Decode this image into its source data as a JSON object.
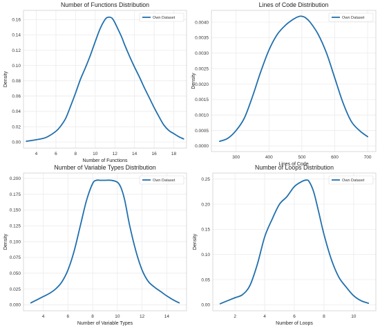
{
  "chart_data": [
    {
      "type": "line",
      "title": "Number of Functions Distribution",
      "xlabel": "Number of Functions",
      "ylabel": "Density",
      "xlim": [
        2.7,
        19.3
      ],
      "ylim": [
        -0.008,
        0.172
      ],
      "xticks": [
        4,
        6,
        8,
        10,
        12,
        14,
        16,
        18
      ],
      "yticks": [
        0.0,
        0.02,
        0.04,
        0.06,
        0.08,
        0.1,
        0.12,
        0.14,
        0.16
      ],
      "ytick_labels": [
        "0.00",
        "0.02",
        "0.04",
        "0.06",
        "0.08",
        "0.10",
        "0.12",
        "0.14",
        "0.16"
      ],
      "grid": true,
      "legend_position": "top-right",
      "series": [
        {
          "name": "Own Dataset",
          "color": "#1f6fae",
          "x": [
            3.0,
            4.0,
            5.0,
            6.0,
            6.5,
            7.0,
            7.5,
            8.0,
            8.5,
            9.0,
            9.5,
            10.0,
            10.5,
            11.0,
            11.3,
            11.7,
            12.0,
            12.3,
            12.7,
            13.0,
            13.5,
            14.0,
            14.5,
            15.0,
            15.5,
            16.0,
            16.5,
            17.0,
            17.5,
            18.0,
            18.5,
            19.0
          ],
          "y": [
            0.001,
            0.003,
            0.006,
            0.014,
            0.021,
            0.031,
            0.047,
            0.064,
            0.082,
            0.097,
            0.113,
            0.131,
            0.148,
            0.16,
            0.163,
            0.162,
            0.156,
            0.148,
            0.137,
            0.127,
            0.112,
            0.098,
            0.085,
            0.071,
            0.058,
            0.045,
            0.033,
            0.022,
            0.015,
            0.011,
            0.007,
            0.004
          ]
        }
      ]
    },
    {
      "type": "line",
      "title": "Lines of Code Distribution",
      "xlabel": "Lines of Code",
      "ylabel": "Density",
      "xlim": [
        225,
        725
      ],
      "ylim": [
        -0.00018,
        0.00438
      ],
      "xticks": [
        300,
        400,
        500,
        600,
        700
      ],
      "yticks": [
        0,
        0.0005,
        0.001,
        0.0015,
        0.002,
        0.0025,
        0.003,
        0.0035,
        0.004
      ],
      "ytick_labels": [
        "0.0000",
        "0.0005",
        "0.0010",
        "0.0015",
        "0.0020",
        "0.0025",
        "0.0030",
        "0.0035",
        "0.0040"
      ],
      "grid": true,
      "legend_position": "top-right",
      "series": [
        {
          "name": "Own Dataset",
          "color": "#1f6fae",
          "x": [
            250,
            275,
            300,
            325,
            350,
            375,
            400,
            425,
            450,
            475,
            490,
            500,
            510,
            525,
            550,
            575,
            600,
            625,
            650,
            675,
            700
          ],
          "y": [
            0.00015,
            0.00025,
            0.0005,
            0.0009,
            0.0016,
            0.0024,
            0.0031,
            0.0036,
            0.0039,
            0.0041,
            0.00418,
            0.00419,
            0.00415,
            0.004,
            0.0036,
            0.003,
            0.0022,
            0.0014,
            0.0008,
            0.0005,
            0.0003
          ]
        }
      ]
    },
    {
      "type": "line",
      "title": "Number of Variable Types Distribution",
      "xlabel": "Number of Variable Types",
      "ylabel": "Density",
      "xlim": [
        2.4,
        15.6
      ],
      "ylim": [
        -0.0095,
        0.2085
      ],
      "xticks": [
        4,
        6,
        8,
        10,
        12,
        14
      ],
      "yticks": [
        0.0,
        0.025,
        0.05,
        0.075,
        0.1,
        0.125,
        0.15,
        0.175,
        0.2
      ],
      "ytick_labels": [
        "0.000",
        "0.025",
        "0.050",
        "0.075",
        "0.100",
        "0.125",
        "0.150",
        "0.175",
        "0.200"
      ],
      "grid": true,
      "legend_position": "top-right",
      "series": [
        {
          "name": "Own Dataset",
          "color": "#1f6fae",
          "x": [
            3.0,
            3.5,
            4.0,
            4.5,
            5.0,
            5.5,
            6.0,
            6.5,
            7.0,
            7.5,
            8.0,
            8.3,
            8.6,
            9.0,
            9.5,
            10.0,
            10.3,
            10.6,
            11.0,
            11.5,
            12.0,
            12.5,
            13.0,
            13.5,
            14.0,
            14.5,
            15.0
          ],
          "y": [
            0.003,
            0.008,
            0.013,
            0.018,
            0.025,
            0.036,
            0.055,
            0.085,
            0.125,
            0.165,
            0.192,
            0.197,
            0.197,
            0.197,
            0.197,
            0.194,
            0.185,
            0.165,
            0.125,
            0.085,
            0.055,
            0.037,
            0.028,
            0.021,
            0.014,
            0.008,
            0.003
          ]
        }
      ]
    },
    {
      "type": "line",
      "title": "Number of Loops Distribution",
      "xlabel": "Number of Loops",
      "ylabel": "Density",
      "xlim": [
        0.5,
        11.5
      ],
      "ylim": [
        -0.012,
        0.262
      ],
      "xticks": [
        2,
        4,
        6,
        8,
        10
      ],
      "yticks": [
        0.0,
        0.05,
        0.1,
        0.15,
        0.2,
        0.25
      ],
      "ytick_labels": [
        "0.00",
        "0.05",
        "0.10",
        "0.15",
        "0.20",
        "0.25"
      ],
      "grid": true,
      "legend_position": "top-right",
      "series": [
        {
          "name": "Own Dataset",
          "color": "#1f6fae",
          "x": [
            1.0,
            1.5,
            2.0,
            2.5,
            3.0,
            3.5,
            4.0,
            4.5,
            5.0,
            5.5,
            6.0,
            6.5,
            6.8,
            7.0,
            7.3,
            7.6,
            8.0,
            8.5,
            9.0,
            9.5,
            10.0,
            10.5,
            11.0
          ],
          "y": [
            0.002,
            0.008,
            0.014,
            0.02,
            0.038,
            0.08,
            0.135,
            0.17,
            0.2,
            0.215,
            0.235,
            0.245,
            0.248,
            0.245,
            0.225,
            0.19,
            0.14,
            0.09,
            0.055,
            0.035,
            0.018,
            0.008,
            0.003
          ]
        }
      ]
    }
  ]
}
